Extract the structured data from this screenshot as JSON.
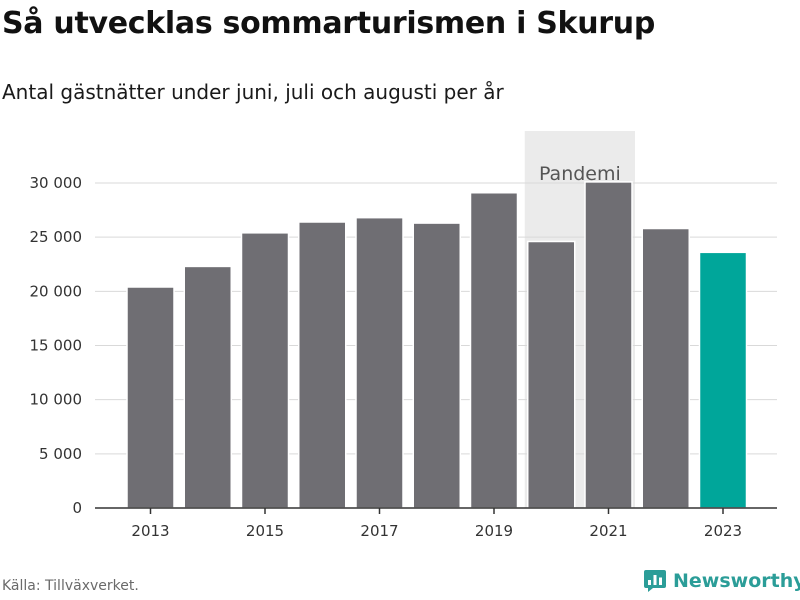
{
  "title": "Så utvecklas sommarturismen i Skurup",
  "subtitle": "Antal gästnätter under juni, juli och augusti per år",
  "source": "Källa: Tillväxverket.",
  "brand": {
    "name": "Newsworthy",
    "logo_icon": "newsworthy-logo-icon",
    "color": "#2b9d98"
  },
  "chart_data": {
    "type": "bar",
    "categories": [
      "2013",
      "2014",
      "2015",
      "2016",
      "2017",
      "2018",
      "2019",
      "2020",
      "2021",
      "2022",
      "2023"
    ],
    "series": [
      {
        "values": [
          20400,
          22300,
          25400,
          26400,
          26800,
          26300,
          29100,
          24600,
          30100,
          25800,
          23600
        ]
      }
    ],
    "colors": {
      "default": "#6f6e73",
      "highlight": "#00a69a",
      "annotation_band": "#ebebeb",
      "grid": "#d9d9d9",
      "axis": "#333333"
    },
    "highlight_category": "2023",
    "x_tick_labels": [
      "2013",
      "2015",
      "2017",
      "2019",
      "2021",
      "2023"
    ],
    "y_ticks": [
      0,
      5000,
      10000,
      15000,
      20000,
      25000,
      30000
    ],
    "y_tick_labels": [
      "0",
      "5 000",
      "10 000",
      "15 000",
      "20 000",
      "25 000",
      "30 000"
    ],
    "ylim": [
      0,
      30000
    ],
    "grid": true,
    "annotation": {
      "label": "Pandemi",
      "from": "2020",
      "to": "2021"
    },
    "xlabel": "",
    "ylabel": ""
  }
}
